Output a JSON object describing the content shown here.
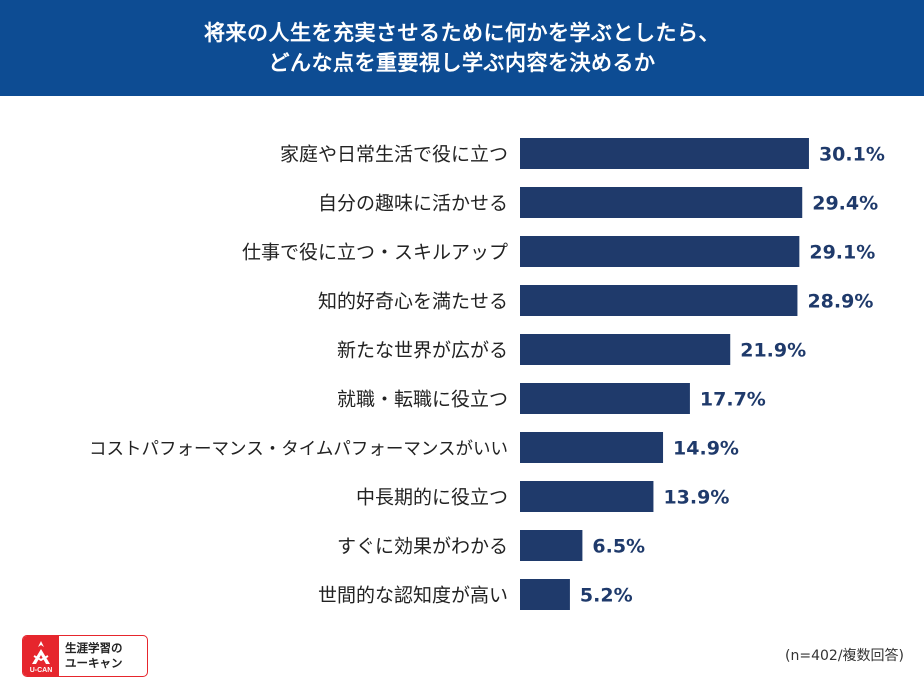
{
  "header": {
    "title_line1": "将来の人生を充実させるために何かを学ぶとしたら、",
    "title_line2": "どんな点を重要視し学ぶ内容を決めるか"
  },
  "chart_data": {
    "type": "bar",
    "orientation": "horizontal",
    "categories": [
      "家庭や日常生活で役に立つ",
      "自分の趣味に活かせる",
      "仕事で役に立つ・スキルアップ",
      "知的好奇心を満たせる",
      "新たな世界が広がる",
      "就職・転職に役立つ",
      "コストパフォーマンス・タイムパフォーマンスがいい",
      "中長期的に役立つ",
      "すぐに効果がわかる",
      "世間的な認知度が高い"
    ],
    "values": [
      30.1,
      29.4,
      29.1,
      28.9,
      21.9,
      17.7,
      14.9,
      13.9,
      6.5,
      5.2
    ],
    "value_labels": [
      "30.1%",
      "29.4%",
      "29.1%",
      "28.9%",
      "21.9%",
      "17.7%",
      "14.9%",
      "13.9%",
      "6.5%",
      "5.2%"
    ],
    "bar_color": "#1f3a6b",
    "label_color": "#1f3a6b",
    "grid": false
  },
  "footer": {
    "logo_line1": "生涯学習の",
    "logo_line2": "ユーキャン",
    "logo_sub": "U-CAN",
    "logo_icon": "ucan-flame-icon",
    "logo_color": "#e6262d",
    "note": "(n=402/複数回答)"
  }
}
